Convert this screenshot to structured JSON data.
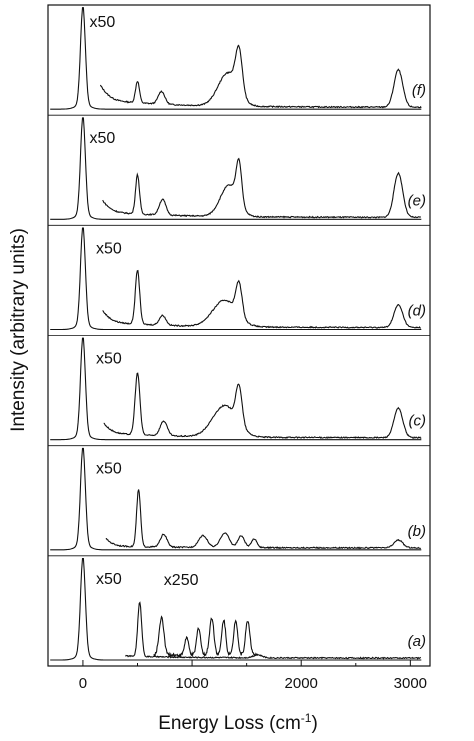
{
  "chart_data": {
    "type": "line",
    "title": "",
    "xlabel": "Energy Loss (cm",
    "xlabel_sup": "-1",
    "xlabel_suffix": ")",
    "ylabel": "Intensity (arbitrary units)",
    "xlim": [
      -320,
      3180
    ],
    "xticks": [
      0,
      1000,
      2000,
      3000
    ],
    "xtick_labels": [
      "0",
      "1000",
      "2000",
      "3000"
    ],
    "grid": false,
    "legend": "none",
    "line_color": "#111111",
    "panels": [
      {
        "label": "(f)",
        "multiplier": "x50",
        "peaks": [
          [
            0,
            1.0,
            22
          ],
          [
            500,
            0.22,
            18
          ],
          [
            720,
            0.13,
            30
          ],
          [
            1330,
            0.34,
            90
          ],
          [
            1430,
            0.43,
            30
          ],
          [
            2890,
            0.38,
            40
          ]
        ],
        "baseline_high": 0.08,
        "x_start": 160
      },
      {
        "label": "(e)",
        "multiplier": "x50",
        "peaks": [
          [
            0,
            1.0,
            22
          ],
          [
            500,
            0.4,
            18
          ],
          [
            730,
            0.16,
            30
          ],
          [
            1340,
            0.32,
            80
          ],
          [
            1430,
            0.42,
            25
          ],
          [
            2890,
            0.45,
            40
          ]
        ],
        "baseline_high": 0.06,
        "x_start": 180
      },
      {
        "label": "(d)",
        "multiplier": "x50",
        "peaks": [
          [
            0,
            1.0,
            22
          ],
          [
            500,
            0.55,
            20
          ],
          [
            730,
            0.1,
            30
          ],
          [
            1300,
            0.27,
            110
          ],
          [
            1430,
            0.33,
            28
          ],
          [
            2890,
            0.23,
            40
          ]
        ],
        "baseline_high": 0.06,
        "x_start": 180
      },
      {
        "label": "(c)",
        "multiplier": "x50",
        "peaks": [
          [
            0,
            1.0,
            22
          ],
          [
            500,
            0.63,
            22
          ],
          [
            740,
            0.15,
            32
          ],
          [
            1300,
            0.32,
            110
          ],
          [
            1430,
            0.38,
            28
          ],
          [
            2890,
            0.3,
            40
          ]
        ],
        "baseline_high": 0.05,
        "x_start": 190
      },
      {
        "label": "(b)",
        "multiplier": "x50",
        "peaks": [
          [
            0,
            1.0,
            22
          ],
          [
            510,
            0.58,
            18
          ],
          [
            740,
            0.13,
            30
          ],
          [
            1100,
            0.12,
            40
          ],
          [
            1300,
            0.15,
            40
          ],
          [
            1450,
            0.12,
            30
          ],
          [
            1570,
            0.09,
            25
          ],
          [
            2890,
            0.08,
            40
          ]
        ],
        "baseline_high": 0.02,
        "x_start": 210
      },
      {
        "label": "(a)",
        "multiplier": "x50",
        "multiplier2": "x250",
        "peaks": [
          [
            0,
            1.0,
            22
          ],
          [
            520,
            0.55,
            18
          ],
          [
            1600,
            0.03,
            40
          ]
        ],
        "baseline_high": 0.02,
        "x_start": 390,
        "inset_peaks": [
          [
            720,
            0.38,
            22
          ],
          [
            950,
            0.18,
            18
          ],
          [
            1060,
            0.28,
            18
          ],
          [
            1180,
            0.38,
            20
          ],
          [
            1290,
            0.36,
            18
          ],
          [
            1400,
            0.36,
            18
          ],
          [
            1510,
            0.35,
            20
          ]
        ],
        "inset_x": [
          650,
          1600
        ]
      }
    ]
  }
}
